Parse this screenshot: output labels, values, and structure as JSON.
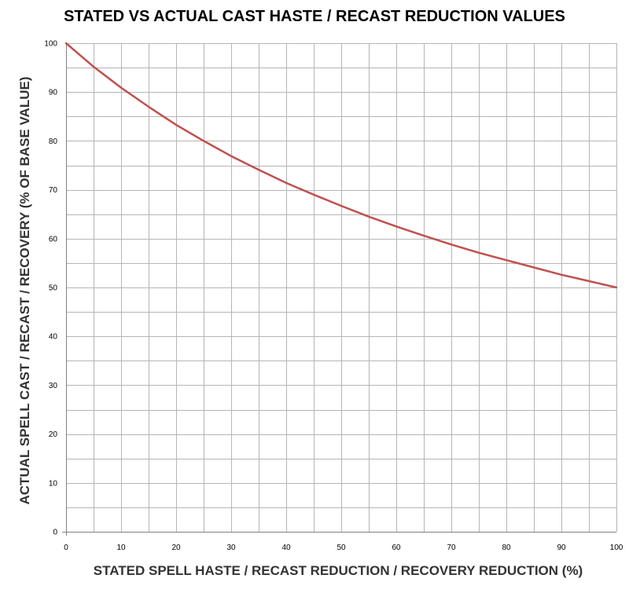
{
  "chart_data": {
    "type": "line",
    "title": "STATED VS ACTUAL CAST HASTE / RECAST REDUCTION VALUES",
    "xlabel": "STATED SPELL HASTE / RECAST REDUCTION / RECOVERY REDUCTION (%)",
    "ylabel": "ACTUAL SPELL CAST / RECAST / RECOVERY (% OF BASE VALUE)",
    "xlim": [
      0,
      100
    ],
    "ylim": [
      0,
      100
    ],
    "x_ticks": [
      "0",
      "10",
      "20",
      "30",
      "40",
      "50",
      "60",
      "70",
      "80",
      "90",
      "100"
    ],
    "y_ticks": [
      "0",
      "10",
      "20",
      "30",
      "40",
      "50",
      "60",
      "70",
      "80",
      "90",
      "100"
    ],
    "grid": true,
    "minor_grid_step": 5,
    "series": [
      {
        "color": "#c0504d",
        "x": [
          0,
          5,
          10,
          15,
          20,
          25,
          30,
          35,
          40,
          45,
          50,
          55,
          60,
          65,
          70,
          75,
          80,
          85,
          90,
          95,
          100
        ],
        "y": [
          100,
          95.2,
          90.9,
          87.0,
          83.3,
          80.0,
          76.9,
          74.1,
          71.4,
          69.0,
          66.7,
          64.5,
          62.5,
          60.6,
          58.8,
          57.1,
          55.6,
          54.1,
          52.6,
          51.3,
          50.0
        ]
      }
    ]
  }
}
